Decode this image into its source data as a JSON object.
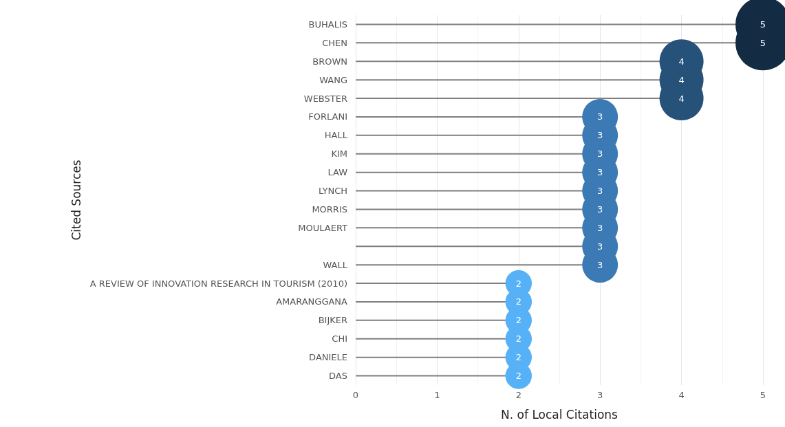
{
  "chart_data": {
    "type": "lollipop",
    "orientation": "horizontal",
    "xlabel": "N. of Local Citations",
    "ylabel": "Cited Sources",
    "categories": [
      "BUHALIS",
      "CHEN",
      "BROWN",
      "WANG",
      "WEBSTER",
      "FORLANI",
      "HALL",
      "KIM",
      "LAW",
      "LYNCH",
      "MORRIS",
      "MOULAERT",
      null,
      "WALL",
      "A REVIEW OF INNOVATION RESEARCH IN TOURISM (2010)",
      "AMARANGGANA",
      "BIJKER",
      "CHI",
      "DANIELE",
      "DAS"
    ],
    "values": [
      5,
      5,
      4,
      4,
      4,
      3,
      3,
      3,
      3,
      3,
      3,
      3,
      3,
      3,
      2,
      2,
      2,
      2,
      2,
      2
    ],
    "color": "#7f7f7f",
    "colors": [
      "#132b43",
      "#132b43",
      "#26527a",
      "#26527a",
      "#26527a",
      "#3b7ab4",
      "#3b7ab4",
      "#3b7ab4",
      "#3b7ab4",
      "#3b7ab4",
      "#3b7ab4",
      "#3b7ab4",
      "#3b7ab4",
      "#3b7ab4",
      "#56b1f7",
      "#56b1f7",
      "#56b1f7",
      "#56b1f7",
      "#56b1f7",
      "#56b1f7"
    ],
    "sizes": [
      1,
      1,
      0.64,
      0.64,
      0.64,
      0.42,
      0.42,
      0.42,
      0.42,
      0.42,
      0.42,
      0.42,
      0.42,
      0.42,
      0.23,
      0.23,
      0.23,
      0.23,
      0.23,
      0.23
    ],
    "xlim": [
      0,
      5
    ],
    "xticks": [
      0,
      1,
      2,
      3,
      4,
      5
    ],
    "grid": "x",
    "marker": "circle",
    "data_labels": true
  }
}
